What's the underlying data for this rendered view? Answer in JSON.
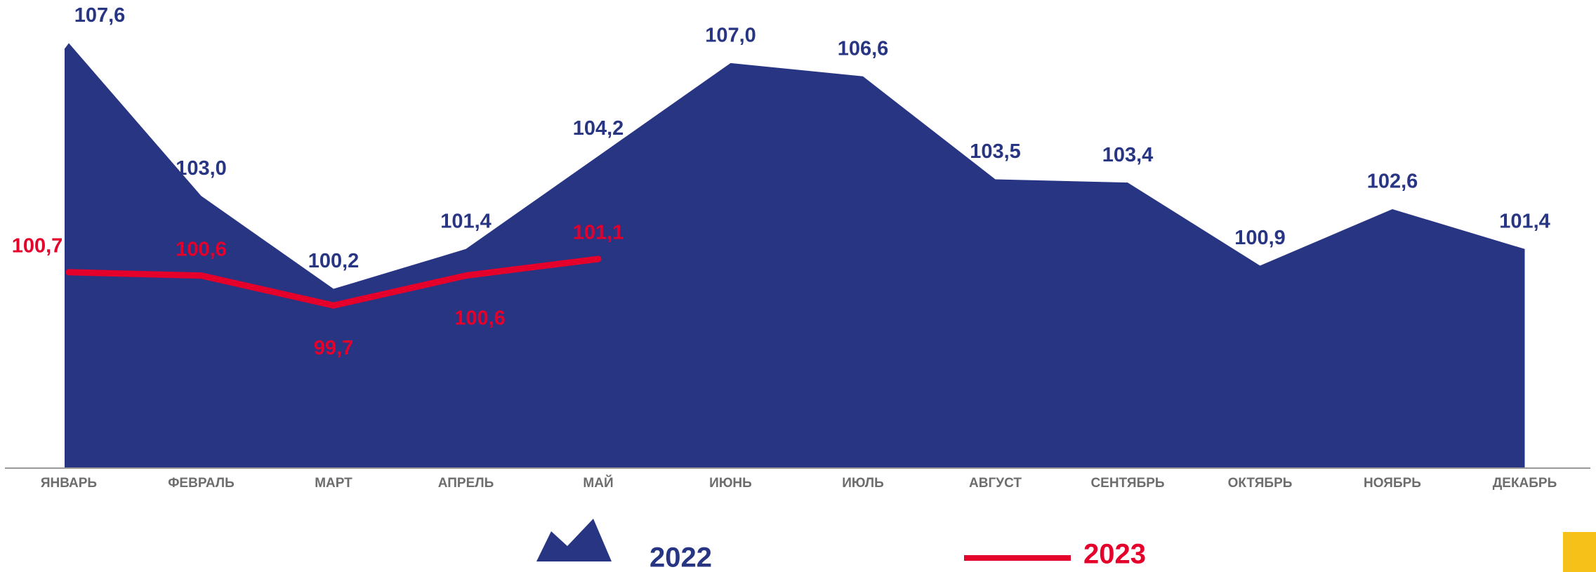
{
  "chart_data": {
    "type": "area",
    "categories": [
      "ЯНВАРЬ",
      "ФЕВРАЛЬ",
      "МАРТ",
      "АПРЕЛЬ",
      "МАЙ",
      "ИЮНЬ",
      "ИЮЛЬ",
      "АВГУСТ",
      "СЕНТЯБРЬ",
      "ОКТЯБРЬ",
      "НОЯБРЬ",
      "ДЕКАБРЬ"
    ],
    "ylim": [
      94.8,
      108.9
    ],
    "series": [
      {
        "name": "2022",
        "type": "area",
        "color": "#283583",
        "values": [
          107.6,
          103.0,
          100.2,
          101.4,
          104.2,
          107.0,
          106.6,
          103.5,
          103.4,
          100.9,
          102.6,
          101.4
        ],
        "value_labels": [
          "107,6",
          "103,0",
          "100,2",
          "101,4",
          "104,2",
          "107,0",
          "106,6",
          "103,5",
          "103,4",
          "100,9",
          "102,6",
          "101,4"
        ]
      },
      {
        "name": "2023",
        "type": "line",
        "color": "#e4002b",
        "values": [
          100.7,
          100.6,
          99.7,
          100.6,
          101.1,
          null,
          null,
          null,
          null,
          null,
          null,
          null
        ],
        "value_labels": [
          "100,7",
          "100,6",
          "99,7",
          "100,6",
          "101,1",
          null,
          null,
          null,
          null,
          null,
          null,
          null
        ]
      }
    ]
  }
}
